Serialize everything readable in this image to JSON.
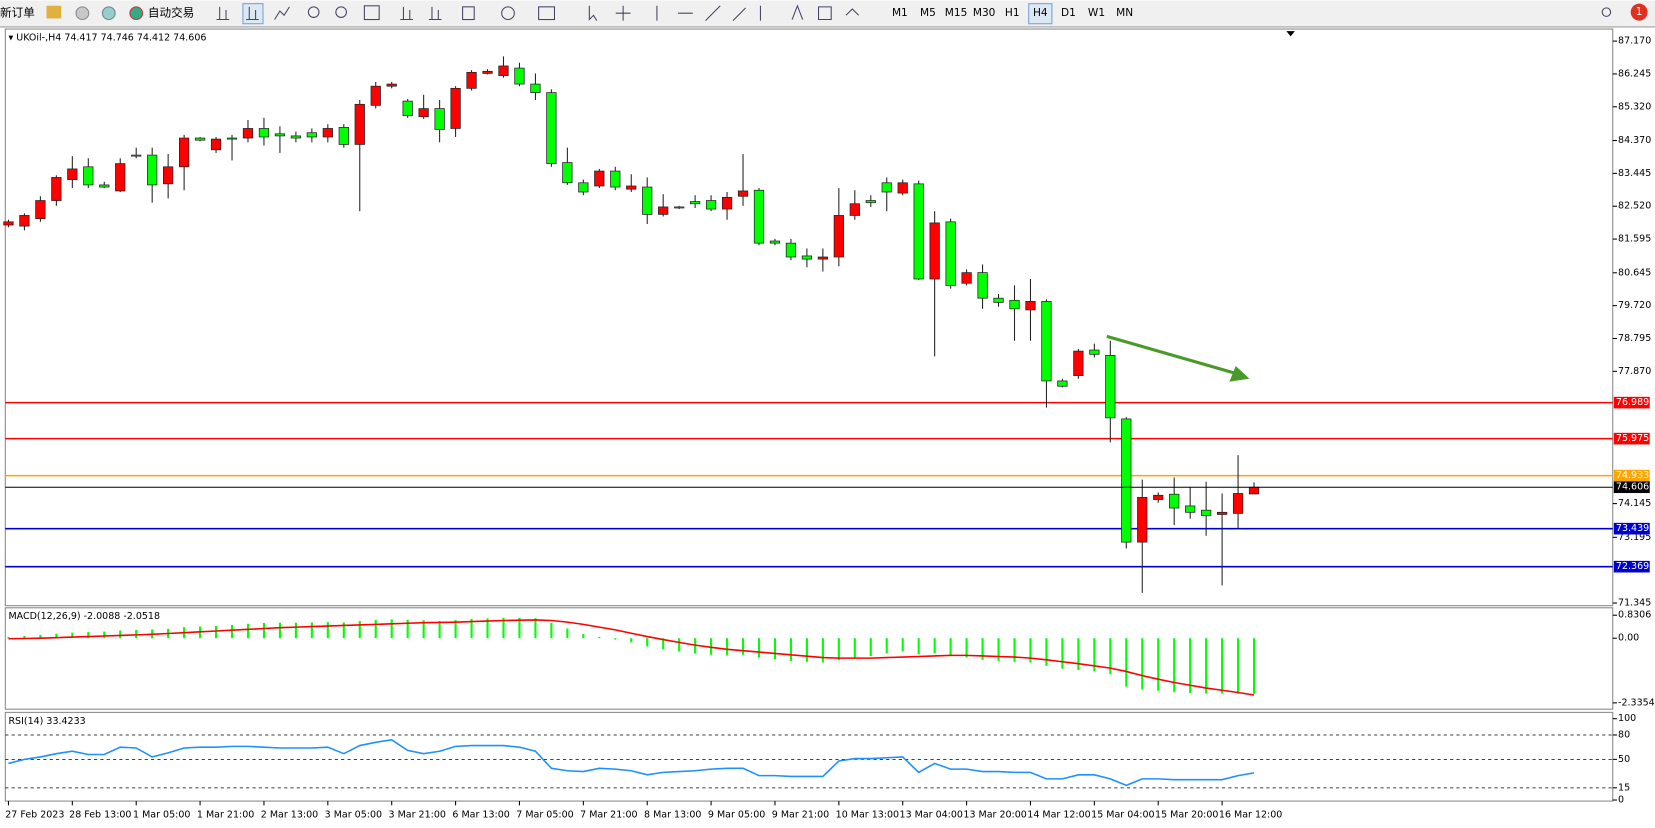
{
  "toolbar": {
    "new_order": "新订单",
    "auto_trading": "自动交易",
    "timeframes": [
      "M1",
      "M5",
      "M15",
      "M30",
      "H1",
      "H4",
      "D1",
      "W1",
      "MN"
    ],
    "active_timeframe": 5,
    "notifications": 1
  },
  "chart_data": [
    {
      "type": "candlestick",
      "symbol": "UKOil-,H4",
      "up_color": "#ff0000",
      "down_color": "#00ff00",
      "x": [
        "27 Feb 2023",
        null,
        null,
        null,
        "28 Feb 13:00",
        null,
        null,
        null,
        "1 Mar 05:00",
        null,
        null,
        null,
        "1 Mar 21:00",
        null,
        null,
        null,
        "2 Mar 13:00",
        null,
        null,
        null,
        "3 Mar 05:00",
        null,
        null,
        null,
        "3 Mar 21:00",
        null,
        null,
        null,
        "6 Mar 13:00",
        null,
        null,
        null,
        "7 Mar 05:00",
        null,
        null,
        null,
        "7 Mar 21:00",
        null,
        null,
        null,
        "8 Mar 13:00",
        null,
        null,
        null,
        "9 Mar 05:00",
        null,
        null,
        null,
        "9 Mar 21:00",
        null,
        null,
        null,
        "10 Mar 13:00",
        null,
        null,
        null,
        "13 Mar 04:00",
        null,
        null,
        null,
        "13 Mar 20:00",
        null,
        null,
        null,
        "14 Mar 12:00",
        null,
        null,
        null,
        "15 Mar 04:00",
        null,
        null,
        null,
        "15 Mar 20:00",
        null,
        null,
        null,
        "16 Mar 12:00",
        null,
        null
      ],
      "candles": [
        [
          81.99,
          82.14,
          81.93,
          82.08
        ],
        [
          81.96,
          82.32,
          81.84,
          82.26
        ],
        [
          82.17,
          82.8,
          82.08,
          82.68
        ],
        [
          82.68,
          83.39,
          82.53,
          83.33
        ],
        [
          83.27,
          83.93,
          83.03,
          83.57
        ],
        [
          83.63,
          83.87,
          83.03,
          83.12
        ],
        [
          83.12,
          83.21,
          83.03,
          83.06
        ],
        [
          82.95,
          83.87,
          82.92,
          83.72
        ],
        [
          83.96,
          84.17,
          83.87,
          83.93
        ],
        [
          83.96,
          84.17,
          82.62,
          83.12
        ],
        [
          83.15,
          83.99,
          82.74,
          83.63
        ],
        [
          83.63,
          84.53,
          82.97,
          84.44
        ],
        [
          84.44,
          84.47,
          84.35,
          84.38
        ],
        [
          84.11,
          84.47,
          84.02,
          84.41
        ],
        [
          84.44,
          84.53,
          83.81,
          84.41
        ],
        [
          84.44,
          84.95,
          84.32,
          84.71
        ],
        [
          84.71,
          85.01,
          84.23,
          84.47
        ],
        [
          84.56,
          84.77,
          84.02,
          84.5
        ],
        [
          84.5,
          84.62,
          84.32,
          84.44
        ],
        [
          84.59,
          84.71,
          84.32,
          84.47
        ],
        [
          84.47,
          84.83,
          84.32,
          84.71
        ],
        [
          84.74,
          84.83,
          84.17,
          84.26
        ],
        [
          84.26,
          85.51,
          82.38,
          85.39
        ],
        [
          85.36,
          86.02,
          85.27,
          85.9
        ],
        [
          85.9,
          86.02,
          85.84,
          85.96
        ],
        [
          85.48,
          85.54,
          85.01,
          85.07
        ],
        [
          85.04,
          85.66,
          84.98,
          85.27
        ],
        [
          85.27,
          85.51,
          84.32,
          84.68
        ],
        [
          84.71,
          85.9,
          84.47,
          85.84
        ],
        [
          85.84,
          86.35,
          85.78,
          86.29
        ],
        [
          86.26,
          86.38,
          86.23,
          86.32
        ],
        [
          86.2,
          86.74,
          86.14,
          86.47
        ],
        [
          86.41,
          86.56,
          85.9,
          85.96
        ],
        [
          85.96,
          86.26,
          85.51,
          85.72
        ],
        [
          85.72,
          85.81,
          83.63,
          83.72
        ],
        [
          83.75,
          84.17,
          83.12,
          83.18
        ],
        [
          83.18,
          83.27,
          82.83,
          82.92
        ],
        [
          83.09,
          83.57,
          83.03,
          83.51
        ],
        [
          83.51,
          83.63,
          82.97,
          83.06
        ],
        [
          83.0,
          83.42,
          82.92,
          83.09
        ],
        [
          83.06,
          83.33,
          82.02,
          82.29
        ],
        [
          82.29,
          82.86,
          82.23,
          82.5
        ],
        [
          82.5,
          82.53,
          82.44,
          82.47
        ],
        [
          82.65,
          82.83,
          82.47,
          82.59
        ],
        [
          82.68,
          82.83,
          82.38,
          82.44
        ],
        [
          82.44,
          82.92,
          82.14,
          82.77
        ],
        [
          82.8,
          83.99,
          82.53,
          82.95
        ],
        [
          82.97,
          83.03,
          81.42,
          81.48
        ],
        [
          81.54,
          81.6,
          81.42,
          81.48
        ],
        [
          81.48,
          81.6,
          81.0,
          81.09
        ],
        [
          81.12,
          81.33,
          80.8,
          81.03
        ],
        [
          81.03,
          81.33,
          80.68,
          81.09
        ],
        [
          81.09,
          83.03,
          80.83,
          82.26
        ],
        [
          82.26,
          82.97,
          82.14,
          82.59
        ],
        [
          82.68,
          82.83,
          82.5,
          82.62
        ],
        [
          83.18,
          83.33,
          82.38,
          82.92
        ],
        [
          82.89,
          83.27,
          82.83,
          83.18
        ],
        [
          83.15,
          83.24,
          80.44,
          80.47
        ],
        [
          80.47,
          82.38,
          78.29,
          82.05
        ],
        [
          82.08,
          82.17,
          80.2,
          80.29
        ],
        [
          80.35,
          80.74,
          80.29,
          80.65
        ],
        [
          80.65,
          80.88,
          79.63,
          79.93
        ],
        [
          79.93,
          80.05,
          79.69,
          79.81
        ],
        [
          79.87,
          80.29,
          78.73,
          79.63
        ],
        [
          79.6,
          80.47,
          78.73,
          79.84
        ],
        [
          79.84,
          79.9,
          76.85,
          77.6
        ],
        [
          77.6,
          77.66,
          77.42,
          77.45
        ],
        [
          77.75,
          78.5,
          77.66,
          78.44
        ],
        [
          78.47,
          78.65,
          78.26,
          78.35
        ],
        [
          78.32,
          78.73,
          75.87,
          76.56
        ],
        [
          76.53,
          76.58,
          72.88,
          73.06
        ],
        [
          73.06,
          74.82,
          71.63,
          74.32
        ],
        [
          74.26,
          74.46,
          74.17,
          74.38
        ],
        [
          74.41,
          74.88,
          73.54,
          74.02
        ],
        [
          74.08,
          74.61,
          73.72,
          73.9
        ],
        [
          73.96,
          74.76,
          73.24,
          73.81
        ],
        [
          73.84,
          74.43,
          71.84,
          73.9
        ],
        [
          73.87,
          75.51,
          73.42,
          74.43
        ],
        [
          74.417,
          74.746,
          74.412,
          74.606
        ]
      ],
      "ylim": [
        71.27,
        87.51
      ],
      "yticks": [
        {
          "value": 87.17,
          "label": "87.170"
        },
        86.245,
        {
          "value": 85.32,
          "label": "85.320"
        },
        {
          "value": 84.37,
          "label": "84.370"
        },
        83.445,
        {
          "value": 82.52,
          "label": "82.520"
        },
        81.595,
        80.645,
        {
          "value": 79.72,
          "label": "79.720"
        },
        78.795,
        {
          "value": 77.87,
          "label": "77.870"
        },
        74.145,
        73.195,
        71.345
      ],
      "levels": [
        {
          "value": 76.989,
          "color": "#ff0000"
        },
        {
          "value": 75.975,
          "color": "#ff0000"
        },
        {
          "value": 74.933,
          "color": "#ffa500"
        },
        {
          "value": 73.439,
          "color": "#0000cd"
        },
        {
          "value": 72.369,
          "color": "#0000cd"
        }
      ],
      "bid_color": "#000000"
    },
    {
      "type": "macd",
      "name": "MACD(12,26,9)",
      "histogram": {
        "color": "#00ff00",
        "values": [
          0.05,
          0.08,
          0.12,
          0.16,
          0.2,
          0.22,
          0.24,
          0.28,
          0.3,
          0.32,
          0.34,
          0.4,
          0.42,
          0.44,
          0.48,
          0.52,
          0.55,
          0.56,
          0.56,
          0.57,
          0.58,
          0.57,
          0.62,
          0.66,
          0.68,
          0.66,
          0.65,
          0.62,
          0.66,
          0.7,
          0.72,
          0.74,
          0.74,
          0.72,
          0.55,
          0.35,
          0.15,
          0.05,
          -0.05,
          -0.15,
          -0.3,
          -0.4,
          -0.48,
          -0.55,
          -0.6,
          -0.62,
          -0.6,
          -0.7,
          -0.75,
          -0.82,
          -0.85,
          -0.88,
          -0.8,
          -0.72,
          -0.65,
          -0.55,
          -0.48,
          -0.58,
          -0.55,
          -0.65,
          -0.7,
          -0.78,
          -0.82,
          -0.85,
          -0.88,
          -1.0,
          -1.1,
          -1.15,
          -1.2,
          -1.3,
          -1.75,
          -1.85,
          -1.9,
          -1.95,
          -1.98,
          -2.0,
          -2.0,
          -2.0,
          -2.0088
        ]
      },
      "signal": {
        "color": "#ff0000",
        "values": [
          -0.02,
          -0.01,
          0.0,
          0.02,
          0.04,
          0.06,
          0.08,
          0.1,
          0.12,
          0.14,
          0.17,
          0.2,
          0.23,
          0.26,
          0.29,
          0.32,
          0.35,
          0.38,
          0.4,
          0.42,
          0.44,
          0.46,
          0.48,
          0.5,
          0.52,
          0.54,
          0.56,
          0.57,
          0.58,
          0.6,
          0.62,
          0.64,
          0.65,
          0.66,
          0.64,
          0.58,
          0.5,
          0.4,
          0.3,
          0.18,
          0.06,
          -0.05,
          -0.15,
          -0.25,
          -0.33,
          -0.4,
          -0.45,
          -0.5,
          -0.55,
          -0.6,
          -0.65,
          -0.7,
          -0.72,
          -0.72,
          -0.72,
          -0.7,
          -0.68,
          -0.66,
          -0.64,
          -0.62,
          -0.62,
          -0.64,
          -0.66,
          -0.68,
          -0.72,
          -0.78,
          -0.85,
          -0.92,
          -1.0,
          -1.08,
          -1.2,
          -1.35,
          -1.48,
          -1.6,
          -1.7,
          -1.8,
          -1.88,
          -1.96,
          -2.0518
        ]
      },
      "ylim": [
        -2.564,
        1.098
      ],
      "yticks": [
        0.8306,
        {
          "value": 0,
          "label": "0.00"
        },
        -2.3354
      ]
    },
    {
      "type": "line",
      "name": "RSI(14)",
      "color": "#1e90ff",
      "values": [
        45,
        50,
        53,
        57,
        60,
        56,
        56,
        65,
        64,
        53,
        58,
        64,
        65,
        65,
        66,
        66,
        65,
        64,
        64,
        64,
        65,
        57,
        67,
        71,
        74,
        61,
        57,
        60,
        66,
        67,
        67,
        67,
        65,
        60,
        39,
        36,
        35,
        39,
        38,
        36,
        31,
        34,
        35,
        36,
        38,
        39,
        39,
        30,
        30,
        29,
        29,
        29,
        48,
        51,
        51,
        52,
        53,
        34,
        45,
        38,
        38,
        35,
        35,
        34,
        34,
        26,
        26,
        31,
        31,
        26,
        18,
        26,
        26,
        25,
        25,
        25,
        25,
        30,
        33.4233
      ],
      "ylim": [
        -1.3,
        107.8
      ],
      "yticks": [
        100,
        80,
        50,
        15,
        0
      ]
    }
  ]
}
